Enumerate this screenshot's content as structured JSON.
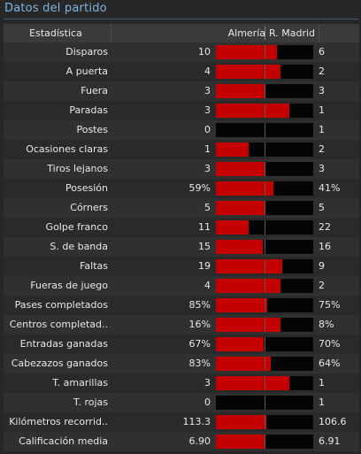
{
  "title": "Datos del partido",
  "header": {
    "stat": "Estadística",
    "home": "Almería",
    "away": "R. Madrid"
  },
  "colors": {
    "bar": "#c40000",
    "track": "#050505",
    "title": "#7fb4de"
  },
  "rows": [
    {
      "label": "Disparos",
      "home": "10",
      "away": "6",
      "home_share": 0.625
    },
    {
      "label": "A puerta",
      "home": "4",
      "away": "2",
      "home_share": 0.667
    },
    {
      "label": "Fuera",
      "home": "3",
      "away": "3",
      "home_share": 0.5
    },
    {
      "label": "Paradas",
      "home": "3",
      "away": "1",
      "home_share": 0.75
    },
    {
      "label": "Postes",
      "home": "0",
      "away": "1",
      "home_share": 0.0
    },
    {
      "label": "Ocasiones claras",
      "home": "1",
      "away": "2",
      "home_share": 0.333
    },
    {
      "label": "Tiros lejanos",
      "home": "3",
      "away": "3",
      "home_share": 0.5
    },
    {
      "label": "Posesión",
      "home": "59%",
      "away": "41%",
      "home_share": 0.59
    },
    {
      "label": "Córners",
      "home": "5",
      "away": "5",
      "home_share": 0.5
    },
    {
      "label": "Golpe franco",
      "home": "11",
      "away": "22",
      "home_share": 0.333
    },
    {
      "label": "S. de banda",
      "home": "15",
      "away": "16",
      "home_share": 0.484
    },
    {
      "label": "Faltas",
      "home": "19",
      "away": "9",
      "home_share": 0.679
    },
    {
      "label": "Fueras de juego",
      "home": "4",
      "away": "2",
      "home_share": 0.667
    },
    {
      "label": "Pases completados",
      "home": "85%",
      "away": "75%",
      "home_share": 0.531
    },
    {
      "label": "Centros completad..",
      "home": "16%",
      "away": "8%",
      "home_share": 0.667
    },
    {
      "label": "Entradas ganadas",
      "home": "67%",
      "away": "70%",
      "home_share": 0.489
    },
    {
      "label": "Cabezazos ganados",
      "home": "83%",
      "away": "64%",
      "home_share": 0.565
    },
    {
      "label": "T. amarillas",
      "home": "3",
      "away": "1",
      "home_share": 0.75
    },
    {
      "label": "T. rojas",
      "home": "0",
      "away": "1",
      "home_share": 0.0
    },
    {
      "label": "Kilómetros recorrid..",
      "home": "113.3",
      "away": "106.6",
      "home_share": 0.515
    },
    {
      "label": "Calificación media",
      "home": "6.90",
      "away": "6.91",
      "home_share": 0.5
    }
  ]
}
